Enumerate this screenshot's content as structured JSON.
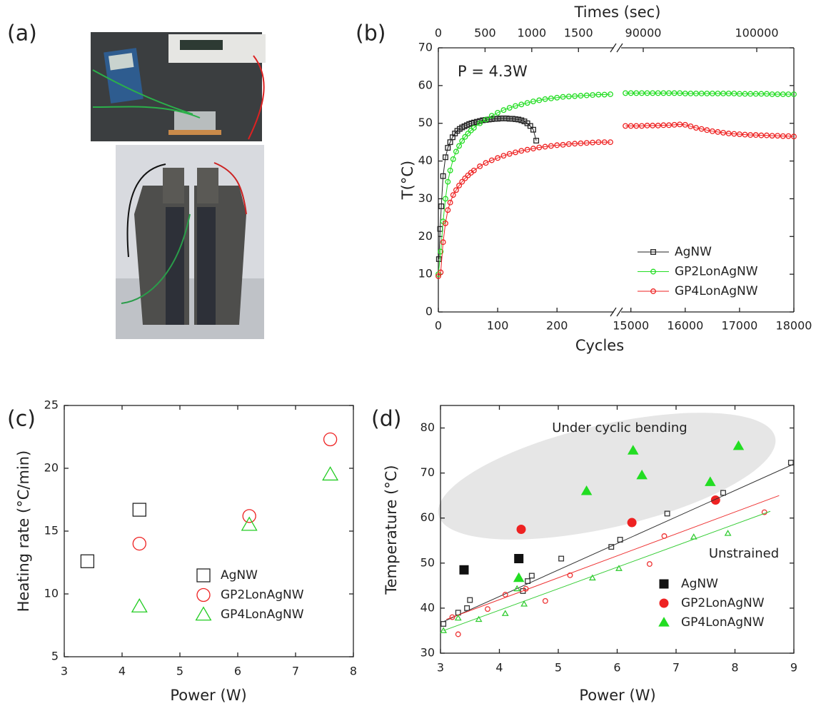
{
  "panel_a": {
    "label": "(a)"
  },
  "chart_data": [
    {
      "type": "line",
      "label": "(b)",
      "annotation": "P = 4.3W",
      "x2label": "Times (sec)",
      "xlabel": "Cycles",
      "ylabel": "T(°C)",
      "ylim": [
        0,
        70
      ],
      "yticks": [
        0,
        10,
        20,
        30,
        40,
        50,
        60,
        70
      ],
      "segments": [
        {
          "xlim": [
            0,
            296
          ],
          "xticks": [
            0,
            100,
            200
          ],
          "x2lim": [
            0,
            1880
          ],
          "x2ticks": [
            0,
            500,
            1000,
            1500
          ]
        },
        {
          "xlim": [
            14820,
            18000
          ],
          "xticks": [
            15000,
            16000,
            17000,
            18000
          ],
          "x2lim": [
            88050,
            103270
          ],
          "x2ticks": [
            90000,
            100000
          ]
        }
      ],
      "series": [
        {
          "name": "AgNW",
          "color": "#222222",
          "marker": "square",
          "filled": false,
          "x": [
            1,
            3,
            5,
            8,
            12,
            16,
            20,
            24,
            28,
            32,
            36,
            40,
            44,
            48,
            52,
            56,
            60,
            65,
            70,
            75,
            80,
            85,
            90,
            95,
            100,
            105,
            110,
            115,
            120,
            125,
            130,
            135,
            140,
            145,
            150,
            155,
            160,
            165
          ],
          "values": [
            14,
            22,
            28,
            36,
            41,
            43.5,
            45,
            46.3,
            47.3,
            48,
            48.5,
            48.9,
            49.2,
            49.5,
            49.8,
            50,
            50.2,
            50.4,
            50.6,
            50.8,
            50.9,
            51,
            51.1,
            51.2,
            51.2,
            51.3,
            51.3,
            51.3,
            51.2,
            51.2,
            51.1,
            51,
            50.8,
            50.5,
            50,
            49.3,
            48.3,
            45.4
          ]
        },
        {
          "name": "GP2LonAgNW",
          "color": "#22dd22",
          "marker": "circle",
          "filled": false,
          "x": [
            0,
            4,
            8,
            12,
            16,
            20,
            25,
            30,
            35,
            40,
            45,
            50,
            55,
            60,
            70,
            80,
            90,
            100,
            110,
            120,
            130,
            140,
            150,
            160,
            170,
            180,
            190,
            200,
            210,
            220,
            230,
            240,
            250,
            260,
            270,
            280,
            290,
            null,
            14900,
            15000,
            15100,
            15200,
            15300,
            15400,
            15500,
            15600,
            15700,
            15800,
            15900,
            16000,
            16100,
            16200,
            16300,
            16400,
            16500,
            16600,
            16700,
            16800,
            16900,
            17000,
            17100,
            17200,
            17300,
            17400,
            17500,
            17600,
            17700,
            17800,
            17900,
            18000
          ],
          "values": [
            10,
            16,
            24,
            30,
            34.5,
            37.5,
            40.5,
            42.5,
            44,
            45.3,
            46.4,
            47.3,
            48.1,
            48.8,
            50,
            51,
            52,
            52.8,
            53.5,
            54.1,
            54.6,
            55,
            55.4,
            55.8,
            56.1,
            56.4,
            56.6,
            56.8,
            57,
            57.1,
            57.2,
            57.3,
            57.4,
            57.5,
            57.6,
            57.6,
            57.7,
            null,
            58,
            58,
            58,
            58,
            58,
            58,
            58,
            58,
            58,
            58,
            58,
            57.9,
            57.9,
            57.9,
            57.9,
            57.9,
            57.9,
            57.9,
            57.9,
            57.9,
            57.9,
            57.8,
            57.8,
            57.8,
            57.8,
            57.8,
            57.8,
            57.7,
            57.7,
            57.7,
            57.7,
            57.7
          ]
        },
        {
          "name": "GP4LonAgNW",
          "color": "#ee2222",
          "marker": "circle",
          "filled": false,
          "x": [
            0,
            4,
            8,
            12,
            16,
            20,
            25,
            30,
            35,
            40,
            45,
            50,
            55,
            60,
            70,
            80,
            90,
            100,
            110,
            120,
            130,
            140,
            150,
            160,
            170,
            180,
            190,
            200,
            210,
            220,
            230,
            240,
            250,
            260,
            270,
            280,
            290,
            null,
            14900,
            15000,
            15100,
            15200,
            15300,
            15400,
            15500,
            15600,
            15700,
            15800,
            15900,
            16000,
            16100,
            16200,
            16300,
            16400,
            16500,
            16600,
            16700,
            16800,
            16900,
            17000,
            17100,
            17200,
            17300,
            17400,
            17500,
            17600,
            17700,
            17800,
            17900,
            18000
          ],
          "values": [
            9.5,
            10.5,
            18.5,
            23.5,
            27,
            29,
            31,
            32.3,
            33.5,
            34.5,
            35.4,
            36.2,
            36.9,
            37.5,
            38.6,
            39.5,
            40.2,
            40.8,
            41.4,
            41.9,
            42.3,
            42.7,
            43,
            43.3,
            43.6,
            43.8,
            44,
            44.2,
            44.3,
            44.5,
            44.6,
            44.7,
            44.8,
            44.9,
            45,
            45,
            45,
            null,
            49.3,
            49.3,
            49.3,
            49.3,
            49.4,
            49.4,
            49.4,
            49.5,
            49.5,
            49.6,
            49.7,
            49.6,
            49.2,
            48.8,
            48.5,
            48.2,
            47.9,
            47.7,
            47.5,
            47.3,
            47.2,
            47.1,
            47,
            46.9,
            46.9,
            46.8,
            46.8,
            46.7,
            46.7,
            46.6,
            46.6,
            46.5
          ]
        }
      ]
    },
    {
      "type": "scatter",
      "label": "(c)",
      "xlabel": "Power (W)",
      "ylabel": "Heating rate (°C/min)",
      "xlim": [
        3,
        8
      ],
      "xticks": [
        3,
        4,
        5,
        6,
        7,
        8
      ],
      "ylim": [
        5,
        25
      ],
      "yticks": [
        5,
        10,
        15,
        20,
        25
      ],
      "series": [
        {
          "name": "AgNW",
          "color": "#222222",
          "marker": "square",
          "filled": false,
          "x": [
            3.4,
            4.3
          ],
          "values": [
            12.6,
            16.7
          ]
        },
        {
          "name": "GP2LonAgNW",
          "color": "#ee2222",
          "marker": "circle",
          "filled": false,
          "x": [
            4.3,
            6.2,
            7.6
          ],
          "values": [
            14,
            16.2,
            22.3
          ]
        },
        {
          "name": "GP4LonAgNW",
          "color": "#22cc22",
          "marker": "triangle",
          "filled": false,
          "x": [
            4.3,
            6.2,
            7.6
          ],
          "values": [
            9,
            15.5,
            19.5
          ]
        }
      ]
    },
    {
      "type": "scatter",
      "label": "(d)",
      "xlabel": "Power (W)",
      "ylabel": "Temperature (°C)",
      "annotations": [
        "Under cyclic bending",
        "Unstrained"
      ],
      "xlim": [
        3,
        9
      ],
      "xticks": [
        3,
        4,
        5,
        6,
        7,
        8,
        9
      ],
      "ylim": [
        30,
        85
      ],
      "yticks": [
        30,
        40,
        50,
        60,
        70,
        80
      ],
      "series": [
        {
          "name": "AgNW",
          "color": "#111111",
          "marker": "square",
          "filled": true,
          "x": [
            3.4,
            4.33
          ],
          "values": [
            48.5,
            51
          ]
        },
        {
          "name": "GP2LonAgNW",
          "color": "#ee2222",
          "marker": "circle",
          "filled": true,
          "x": [
            4.37,
            6.25,
            7.67
          ],
          "values": [
            57.5,
            59,
            64
          ]
        },
        {
          "name": "GP4LonAgNW",
          "color": "#22dd22",
          "marker": "triangle",
          "filled": true,
          "x": [
            4.33,
            5.48,
            6.27,
            6.42,
            7.58,
            8.06
          ],
          "values": [
            46.7,
            66,
            75,
            69.5,
            68,
            76
          ]
        },
        {
          "color": "#333333",
          "marker": "square",
          "filled": false,
          "x": [
            3.05,
            3.3,
            3.45,
            3.5,
            4.4,
            4.48,
            4.55,
            5.05,
            5.9,
            6.05,
            6.85,
            7.8,
            8.95
          ],
          "values": [
            36.5,
            39,
            40,
            41.8,
            43.8,
            46,
            47.2,
            51,
            53.6,
            55.2,
            61,
            65.6,
            72.3
          ],
          "fit": {
            "x": [
              3.05,
              9
            ],
            "values": [
              37,
              72
            ]
          }
        },
        {
          "color": "#ee3333",
          "marker": "circle",
          "filled": false,
          "x": [
            3.2,
            3.3,
            3.8,
            4.1,
            4.45,
            4.78,
            5.2,
            6.55,
            6.8,
            8.5
          ],
          "values": [
            38,
            34.2,
            39.8,
            43,
            44.3,
            41.6,
            47.3,
            49.8,
            56,
            61.3
          ],
          "fit": {
            "x": [
              3.1,
              8.75
            ],
            "values": [
              37.5,
              65
            ]
          }
        },
        {
          "color": "#33cc33",
          "marker": "triangle",
          "filled": false,
          "x": [
            3.05,
            3.3,
            3.65,
            4.1,
            4.3,
            4.42,
            5.58,
            6.03,
            7.3,
            7.88
          ],
          "values": [
            35,
            37.8,
            37.5,
            38.8,
            44.3,
            40.9,
            46.7,
            48.8,
            55.8,
            56.6
          ],
          "fit": {
            "x": [
              3.05,
              8.6
            ],
            "values": [
              35,
              61.5
            ]
          }
        }
      ]
    }
  ]
}
